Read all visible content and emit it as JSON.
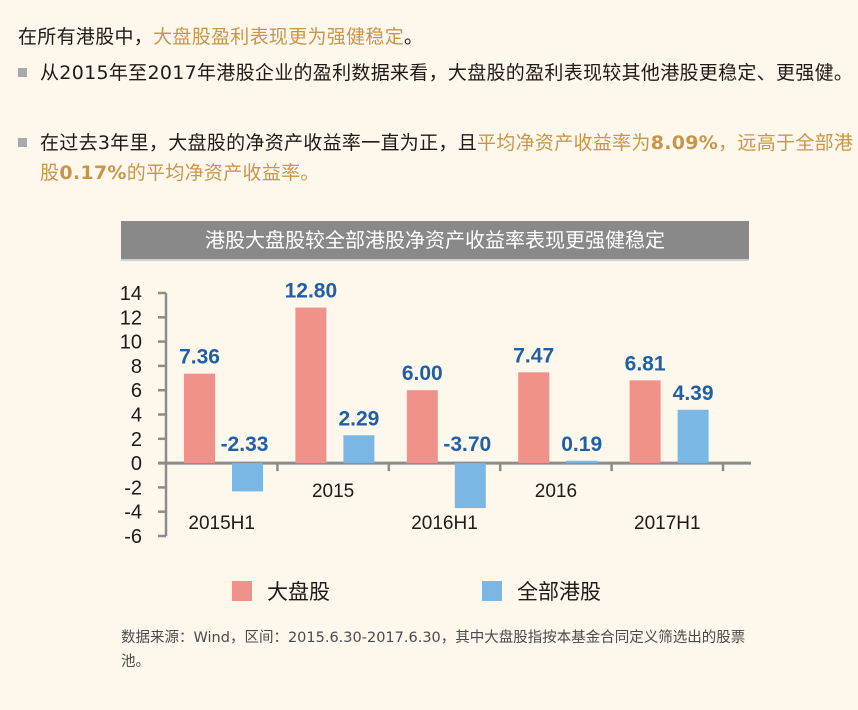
{
  "intro": {
    "prefix": "在所有港股中，",
    "highlight": "大盘股盈利表现更为强健稳定",
    "suffix": "。"
  },
  "bullets": [
    {
      "parts": [
        {
          "text": "从2015年至2017年港股企业的盈利数据来看，大盘股的盈利表现较其他港股更稳定、更强健。",
          "style": "normal"
        }
      ]
    },
    {
      "parts": [
        {
          "text": "在过去3年里，大盘股的净资产收益率一直为正，且",
          "style": "normal"
        },
        {
          "text": "平均净资产收益率为",
          "style": "hl"
        },
        {
          "text": "8.09%",
          "style": "hlb"
        },
        {
          "text": "，远高于全部港股",
          "style": "hl"
        },
        {
          "text": "0.17%",
          "style": "hlb"
        },
        {
          "text": "的平均净资产收益率。",
          "style": "hl"
        }
      ]
    }
  ],
  "colors": {
    "large_cap": "#f0928a",
    "all_hk": "#7ab7e5",
    "value_label": "#1f5fa5",
    "highlight": "#c8964a",
    "title_bar": "#898989",
    "axis": "#8c8c8c"
  },
  "chart_data": {
    "type": "bar",
    "title": "港股大盘股较全部港股净资产收益率表现更强健稳定",
    "categories": [
      "2015H1",
      "2015",
      "2016H1",
      "2016",
      "2017H1"
    ],
    "series": [
      {
        "name": "大盘股",
        "values": [
          7.36,
          12.8,
          6.0,
          7.47,
          6.81
        ],
        "labels": [
          "7.36",
          "12.80",
          "6.00",
          "7.47",
          "6.81"
        ]
      },
      {
        "name": "全部港股",
        "values": [
          -2.33,
          2.29,
          -3.7,
          0.19,
          4.39
        ],
        "labels": [
          "-2.33",
          "2.29",
          "-3.70",
          "0.19",
          "4.39"
        ]
      }
    ],
    "xlabel": "",
    "ylabel": "",
    "ylim": [
      -6,
      14
    ],
    "yticks": [
      "14",
      "12",
      "10",
      "8",
      "6",
      "4",
      "2",
      "0",
      "-2",
      "-4",
      "-6"
    ],
    "grid": false,
    "legend_position": "bottom"
  },
  "legend": [
    {
      "label": "大盘股"
    },
    {
      "label": "全部港股"
    }
  ],
  "source": "数据来源：Wind，区间：2015.6.30-2017.6.30，其中大盘股指按本基金合同定义筛选出的股票池。"
}
